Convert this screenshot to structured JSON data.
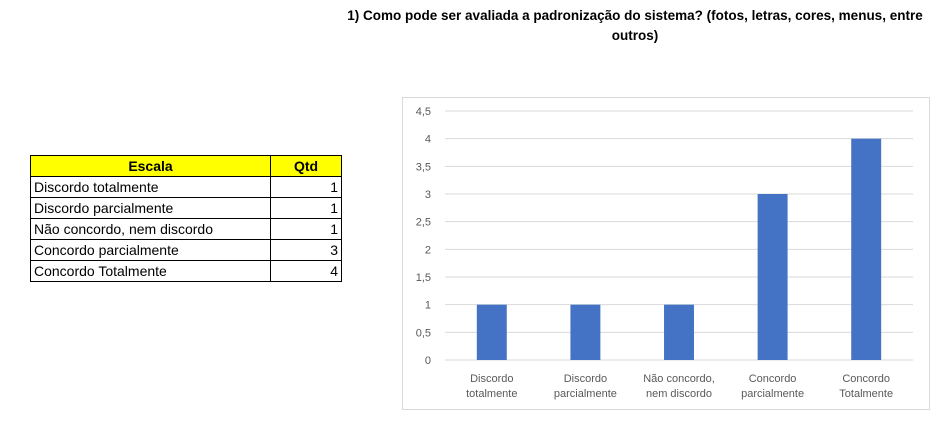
{
  "question": {
    "line1": "1)  Como pode ser avaliada a padronização do sistema? (fotos, letras, cores, menus, entre",
    "line2": "outros)"
  },
  "table": {
    "headers": [
      "Escala",
      "Qtd"
    ],
    "rows": [
      {
        "label": "Discordo totalmente",
        "qty": "1"
      },
      {
        "label": "Discordo parcialmente",
        "qty": "1"
      },
      {
        "label": "Não concordo, nem discordo",
        "qty": "1"
      },
      {
        "label": "Concordo parcialmente",
        "qty": "3"
      },
      {
        "label": "Concordo Totalmente",
        "qty": "4"
      }
    ]
  },
  "chart_data": {
    "type": "bar",
    "categories": [
      [
        "Discordo",
        "totalmente"
      ],
      [
        "Discordo",
        "parcialmente"
      ],
      [
        "Não concordo,",
        "nem discordo"
      ],
      [
        "Concordo",
        "parcialmente"
      ],
      [
        "Concordo",
        "Totalmente"
      ]
    ],
    "values": [
      1,
      1,
      1,
      3,
      4
    ],
    "ylim": [
      0,
      4.5
    ],
    "ytick_step": 0.5,
    "ytick_labels": [
      "0",
      "0,5",
      "1",
      "1,5",
      "2",
      "2,5",
      "3",
      "3,5",
      "4",
      "4,5"
    ],
    "bar_color": "#4472c4",
    "grid_color": "#d9d9d9",
    "grid": true,
    "legend": "none"
  }
}
